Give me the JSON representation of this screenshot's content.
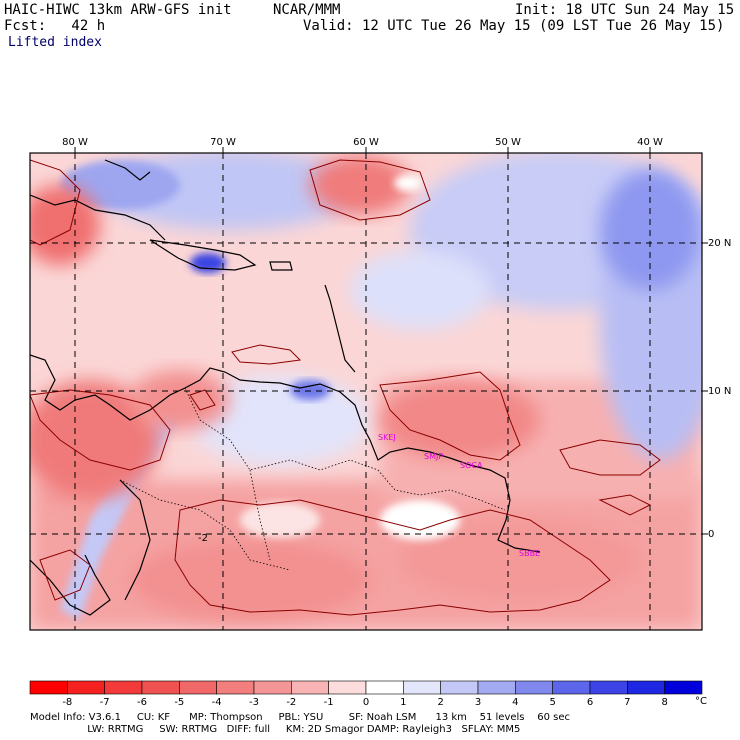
{
  "header": {
    "model_title": "HAIC-HIWC 13km ARW-GFS init",
    "center": "NCAR/MMM",
    "init": "Init: 18 UTC Sun 24 May 15",
    "forecast": "Fcst:   42 h",
    "valid": "Valid: 12 UTC Tue 26 May 15 (09 LST Tue 26 May 15)",
    "field": "Lifted index"
  },
  "map": {
    "longitude_labels": [
      "80 W",
      "70 W",
      "60 W",
      "50 W",
      "40 W"
    ],
    "latitude_labels": [
      "20 N",
      "10 N",
      "0"
    ],
    "stations": [
      "SKEJ",
      "SMJP",
      "SOCA",
      "SBBE"
    ],
    "contour_label": "-2",
    "colors": {
      "negative_strong": "#ee3030",
      "negative_mid": "#f48c8c",
      "negative_light": "#fbd0d0",
      "neutral": "#ffffff",
      "positive_light": "#d4d8f8",
      "positive_mid": "#8e98f0",
      "positive_strong": "#2a2ae8",
      "station": "#e000e0"
    }
  },
  "colorbar": {
    "labels": [
      "-8",
      "-7",
      "-6",
      "-5",
      "-4",
      "-3",
      "-2",
      "-1",
      "0",
      "1",
      "2",
      "3",
      "4",
      "5",
      "6",
      "7",
      "8"
    ],
    "unit": "°C",
    "swatches": [
      "#ff0000",
      "#f52020",
      "#f23a3a",
      "#f05252",
      "#f06868",
      "#f37e7e",
      "#f59696",
      "#f8b4b4",
      "#fcdcdc",
      "#ffffff",
      "#e4e6fb",
      "#c4c8f6",
      "#a4aaf2",
      "#8088ee",
      "#5c66ea",
      "#3c44e6",
      "#1e28e2",
      "#0000dd"
    ]
  },
  "footer": {
    "line1": "Model Info: V3.6.1     CU: KF      MP: Thompson     PBL: YSU        SF: Noah LSM      13 km    51 levels    60 sec",
    "line2": "                  LW: RRTMG     SW: RRTMG   DIFF: full     KM: 2D Smagor DAMP: Rayleigh3   SFLAY: MM5"
  }
}
